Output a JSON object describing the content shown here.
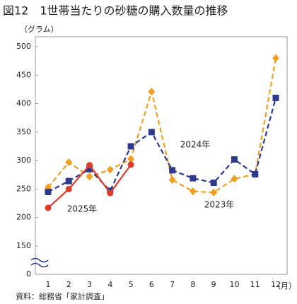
{
  "chart_data": {
    "type": "line",
    "title": "図12　1世帯当たりの砂糖の購入数量の推移",
    "y_unit": "（グラム）",
    "x_unit": "（月）",
    "source": "資料：総務省「家計調査」",
    "categories": [
      "1",
      "2",
      "3",
      "4",
      "5",
      "6",
      "7",
      "8",
      "9",
      "10",
      "11",
      "12"
    ],
    "series": [
      {
        "name": "2023年",
        "color": "#f0a020",
        "marker": "diamond",
        "dash": true,
        "values": [
          253,
          297,
          272,
          284,
          303,
          421,
          266,
          246,
          244,
          268,
          276,
          480
        ]
      },
      {
        "name": "2024年",
        "color": "#2e3a8c",
        "marker": "square",
        "dash": true,
        "values": [
          245,
          264,
          285,
          247,
          325,
          350,
          283,
          269,
          261,
          302,
          276,
          410
        ]
      },
      {
        "name": "2025年",
        "color": "#e03a2a",
        "marker": "circle",
        "dash": false,
        "values": [
          217,
          250,
          292,
          243,
          293,
          null,
          null,
          null,
          null,
          null,
          null,
          null
        ]
      }
    ],
    "ylim": [
      0,
      500
    ],
    "axis_break": [
      0,
      150
    ],
    "yticks": [
      0,
      150,
      200,
      250,
      300,
      350,
      400,
      450,
      500
    ]
  }
}
